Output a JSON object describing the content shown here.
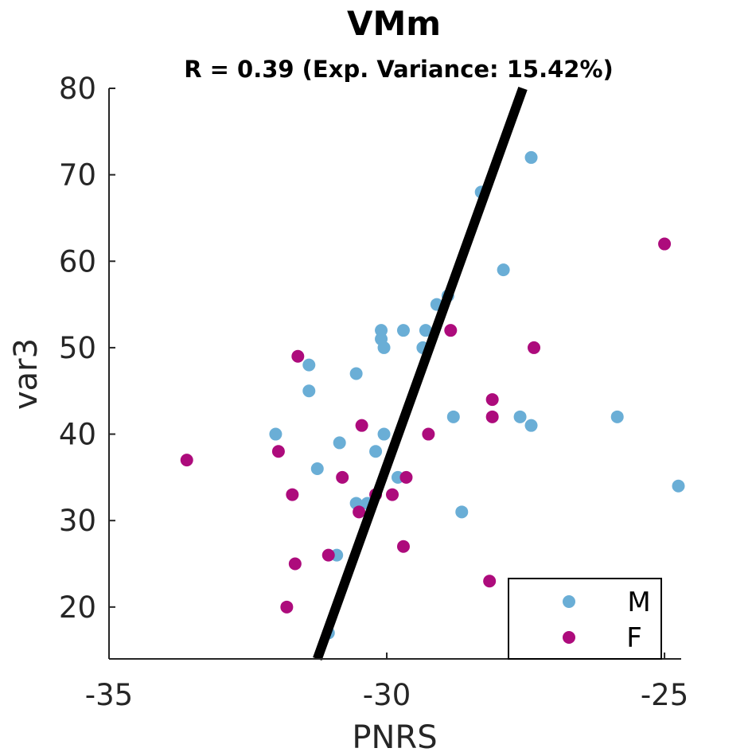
{
  "chart_data": {
    "type": "scatter",
    "title": "VMm",
    "subtitle": "R = 0.39 (Exp. Variance: 15.42%)",
    "xlabel": "PNRS",
    "ylabel": "var3",
    "xlim": [
      -35,
      -24.7
    ],
    "ylim": [
      14,
      80
    ],
    "xticks": [
      -35,
      -30,
      -25
    ],
    "yticks": [
      20,
      30,
      40,
      50,
      60,
      70,
      80
    ],
    "xtick_labels": [
      "-35",
      "-30",
      "-25"
    ],
    "ytick_labels": [
      "20",
      "30",
      "40",
      "50",
      "60",
      "70",
      "80"
    ],
    "legend_position": "bottom-right",
    "series": [
      {
        "name": "M",
        "color": "#6aaed6",
        "points": [
          [
            -27.4,
            72
          ],
          [
            -28.3,
            68
          ],
          [
            -27.9,
            59
          ],
          [
            -28.9,
            56
          ],
          [
            -29.1,
            55
          ],
          [
            -30.1,
            52
          ],
          [
            -29.7,
            52
          ],
          [
            -29.3,
            52
          ],
          [
            -30.1,
            51
          ],
          [
            -30.05,
            50
          ],
          [
            -29.35,
            50
          ],
          [
            -31.4,
            48
          ],
          [
            -30.55,
            47
          ],
          [
            -31.4,
            45
          ],
          [
            -28.8,
            42
          ],
          [
            -27.6,
            42
          ],
          [
            -25.85,
            42
          ],
          [
            -27.4,
            41
          ],
          [
            -32.0,
            40
          ],
          [
            -30.05,
            40
          ],
          [
            -30.85,
            39
          ],
          [
            -30.2,
            38
          ],
          [
            -31.25,
            36
          ],
          [
            -29.8,
            35
          ],
          [
            -24.75,
            34
          ],
          [
            -30.55,
            32
          ],
          [
            -30.35,
            32
          ],
          [
            -28.65,
            31
          ],
          [
            -30.9,
            26
          ],
          [
            -31.05,
            17
          ]
        ]
      },
      {
        "name": "F",
        "color": "#ad0b7c",
        "points": [
          [
            -25.0,
            62
          ],
          [
            -28.85,
            52
          ],
          [
            -27.35,
            50
          ],
          [
            -31.6,
            49
          ],
          [
            -28.1,
            44
          ],
          [
            -28.1,
            42
          ],
          [
            -30.45,
            41
          ],
          [
            -29.25,
            40
          ],
          [
            -31.95,
            38
          ],
          [
            -33.6,
            37
          ],
          [
            -30.8,
            35
          ],
          [
            -29.65,
            35
          ],
          [
            -31.7,
            33
          ],
          [
            -29.9,
            33
          ],
          [
            -30.2,
            33
          ],
          [
            -30.5,
            31
          ],
          [
            -29.7,
            27
          ],
          [
            -31.05,
            26
          ],
          [
            -31.65,
            25
          ],
          [
            -28.15,
            23
          ],
          [
            -31.8,
            20
          ]
        ]
      }
    ],
    "fit_line": {
      "color": "#000000",
      "x": [
        -31.25,
        -27.55
      ],
      "y": [
        14,
        80
      ]
    }
  }
}
